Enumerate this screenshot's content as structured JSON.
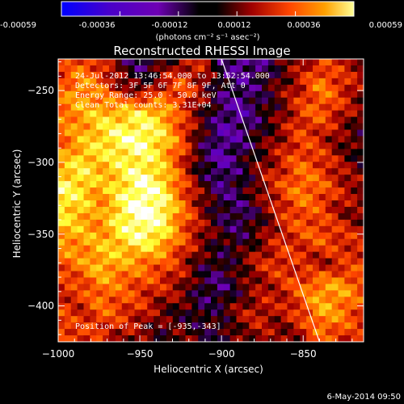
{
  "colorbar": {
    "ticks": [
      "-0.00059",
      "-0.00036",
      "-0.00012",
      "0.00012",
      "0.00036",
      "0.00059"
    ],
    "unit_label": "(photons cm⁻² s⁻¹ asec⁻²)"
  },
  "annotations": {
    "time": "24-Jul-2012 13:46:54.000 to 13:52:54.000",
    "detectors": "Detectors: 3F 5F 6F 7F 8F 9F, Att 0",
    "energy": "Energy Range: 25.0 - 50.0 keV",
    "clean": "Clean    Total counts: 3.31E+04",
    "peak": "Position of Peak = [-935,-343]"
  },
  "footer": {
    "date": "6-May-2014 09:50"
  },
  "chart_data": {
    "type": "heatmap",
    "title": "Reconstructed RHESSI Image",
    "xlabel": "Heliocentric X (arcsec)",
    "ylabel": "Heliocentric Y (arcsec)",
    "xlim": [
      -1000,
      -813
    ],
    "ylim": [
      -425,
      -228
    ],
    "xticks": [
      -1000,
      -950,
      -900,
      -850
    ],
    "yticks": [
      -400,
      -350,
      -300,
      -250
    ],
    "xtick_labels": [
      "−1000",
      "−950",
      "−900",
      "−850"
    ],
    "ytick_labels": [
      "−400",
      "−350",
      "−300",
      "−250"
    ],
    "colorbar_range": [
      -0.00059,
      0.00059
    ],
    "colormap": [
      "#0000ff",
      "#4b00c8",
      "#6e00b4",
      "#000000",
      "#a00000",
      "#ff4600",
      "#ffa000",
      "#ffff32",
      "#ffffff"
    ],
    "grid": [
      [
        0.1,
        0.3,
        0.15,
        -0.2,
        -0.4,
        -0.2,
        0.0,
        0.1,
        -0.3,
        -0.5,
        -0.4,
        -0.2,
        0.0,
        0.2,
        0.1,
        0.0
      ],
      [
        0.3,
        0.5,
        0.3,
        0.0,
        -0.2,
        0.1,
        0.3,
        0.0,
        -0.3,
        -0.4,
        -0.3,
        -0.1,
        0.1,
        0.4,
        0.2,
        0.0
      ],
      [
        0.4,
        0.5,
        0.6,
        0.6,
        0.7,
        0.6,
        0.2,
        -0.1,
        -0.4,
        -0.5,
        -0.3,
        -0.1,
        0.2,
        0.3,
        0.1,
        -0.1
      ],
      [
        0.3,
        0.5,
        0.7,
        0.85,
        0.9,
        0.7,
        0.3,
        -0.2,
        -0.5,
        -0.4,
        -0.2,
        0.0,
        0.2,
        0.1,
        -0.1,
        -0.2
      ],
      [
        0.5,
        0.7,
        0.6,
        0.7,
        0.8,
        0.6,
        0.2,
        -0.3,
        -0.5,
        -0.3,
        -0.1,
        0.1,
        0.3,
        0.2,
        0.0,
        -0.2
      ],
      [
        0.8,
        0.7,
        0.5,
        0.7,
        0.95,
        0.8,
        0.3,
        -0.1,
        -0.4,
        -0.3,
        0.0,
        0.2,
        0.4,
        0.3,
        0.1,
        0.0
      ],
      [
        0.7,
        0.6,
        0.4,
        0.8,
        1.0,
        0.9,
        0.4,
        0.0,
        -0.3,
        -0.4,
        -0.2,
        0.1,
        0.3,
        0.2,
        0.0,
        -0.1
      ],
      [
        0.5,
        0.5,
        0.5,
        0.7,
        0.85,
        0.7,
        0.3,
        0.0,
        -0.2,
        -0.3,
        -0.1,
        0.1,
        0.2,
        0.3,
        0.2,
        0.1
      ],
      [
        0.3,
        0.4,
        0.6,
        0.5,
        0.4,
        0.3,
        0.1,
        -0.2,
        -0.3,
        -0.1,
        0.1,
        0.2,
        0.1,
        0.0,
        0.1,
        0.2
      ],
      [
        0.1,
        0.2,
        0.4,
        0.3,
        0.2,
        0.1,
        0.0,
        -0.3,
        -0.4,
        -0.2,
        0.0,
        0.1,
        0.3,
        0.5,
        0.5,
        0.3
      ],
      [
        0.2,
        0.1,
        0.3,
        0.2,
        0.1,
        -0.1,
        -0.2,
        -0.3,
        -0.2,
        0.0,
        0.1,
        0.0,
        0.2,
        0.5,
        0.4,
        0.2
      ],
      [
        0.3,
        0.2,
        0.1,
        0.0,
        -0.1,
        -0.2,
        -0.1,
        -0.2,
        -0.3,
        -0.1,
        0.0,
        -0.1,
        0.0,
        0.3,
        0.2,
        0.1
      ]
    ],
    "boundary_line": [
      [
        -900,
        -228
      ],
      [
        -840,
        -425
      ]
    ],
    "peak_position": [
      -935,
      -343
    ]
  }
}
